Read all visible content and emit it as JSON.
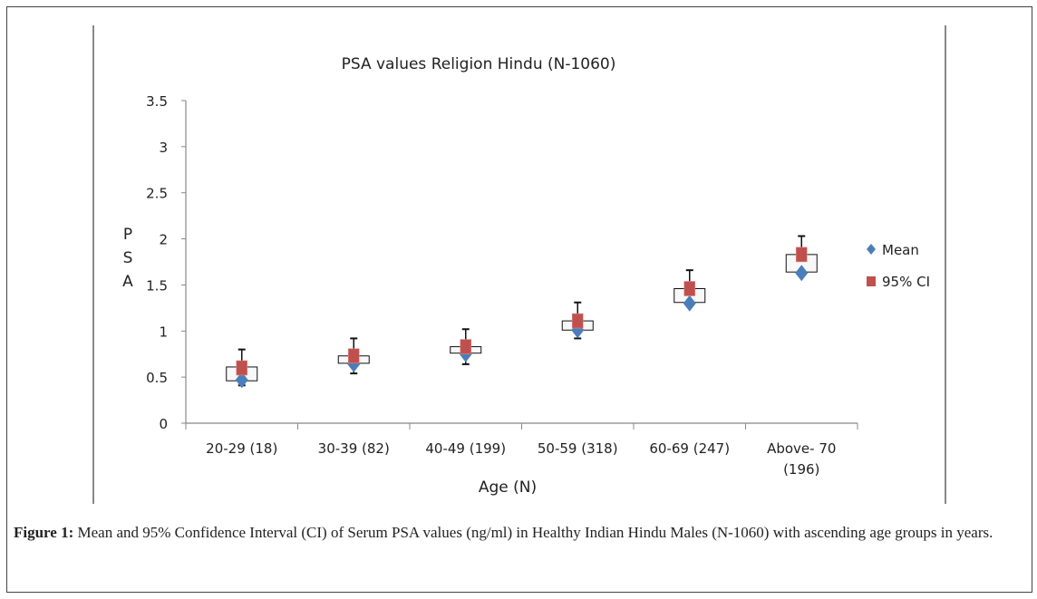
{
  "chart_data": {
    "type": "scatter",
    "title": "PSA values  Religion  Hindu (N-1060)",
    "xlabel": "Age (N)",
    "ylabel": "P S A",
    "ylim": [
      0,
      3.5
    ],
    "yticks": [
      "0",
      "0.5",
      "1",
      "1.5",
      "2",
      "2.5",
      "3",
      "3.5"
    ],
    "grid": false,
    "legend_placement": "right",
    "categories": [
      "20-29 (18)",
      "30-39 (82)",
      "40-49 (199)",
      "50-59 (318)",
      "60-69 (247)",
      "Above- 70 (196)"
    ],
    "series": [
      {
        "name": "Mean",
        "marker": "diamond",
        "color": "#4a7ebb",
        "values": [
          0.47,
          0.64,
          0.75,
          1.01,
          1.3,
          1.63
        ]
      },
      {
        "name": "95% CI",
        "marker": "square",
        "color": "#c0504d",
        "values": [
          0.6,
          0.73,
          0.83,
          1.11,
          1.46,
          1.83
        ]
      }
    ],
    "box_low": [
      0.46,
      0.65,
      0.76,
      1.01,
      1.31,
      1.64
    ],
    "box_high": [
      0.61,
      0.73,
      0.83,
      1.11,
      1.46,
      1.83
    ],
    "error_low": [
      0.41,
      0.54,
      0.64,
      0.92,
      1.3,
      1.63
    ],
    "error_high": [
      0.8,
      0.92,
      1.02,
      1.31,
      1.66,
      2.03
    ]
  },
  "caption": {
    "label": "Figure 1:",
    "text": " Mean and 95% Confidence Interval (CI) of Serum PSA values (ng/ml) in Healthy Indian Hindu Males (N-1060) with ascending age groups in years."
  }
}
